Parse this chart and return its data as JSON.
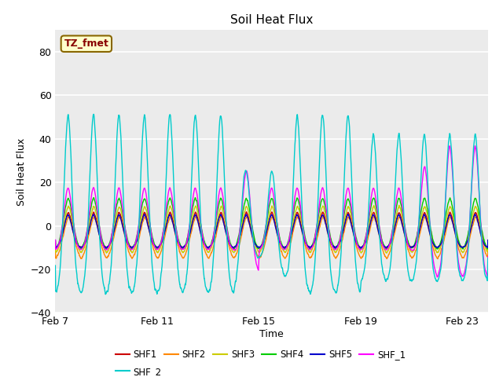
{
  "title": "Soil Heat Flux",
  "xlabel": "Time",
  "ylabel": "Soil Heat Flux",
  "ylim": [
    -40,
    90
  ],
  "yticks": [
    -40,
    -20,
    0,
    20,
    40,
    60,
    80
  ],
  "num_days": 17,
  "ppd": 144,
  "x_tick_labels": [
    "Feb 7",
    "Feb 11",
    "Feb 15",
    "Feb 19",
    "Feb 23"
  ],
  "x_tick_positions": [
    0,
    4,
    8,
    12,
    16
  ],
  "series_colors": {
    "SHF1": "#cc0000",
    "SHF2": "#ff8800",
    "SHF3": "#cccc00",
    "SHF4": "#00cc00",
    "SHF5": "#0000cc",
    "SHF_1": "#ff00ff",
    "SHF_2": "#00cccc"
  },
  "legend_label": "TZ_fmet",
  "legend_bg": "#ffffcc",
  "legend_border": "#886600",
  "legend_text_color": "#880000",
  "plot_bg_color": "#ebebeb",
  "grid_color": "#ffffff",
  "shaded_band": [
    -20,
    20
  ]
}
